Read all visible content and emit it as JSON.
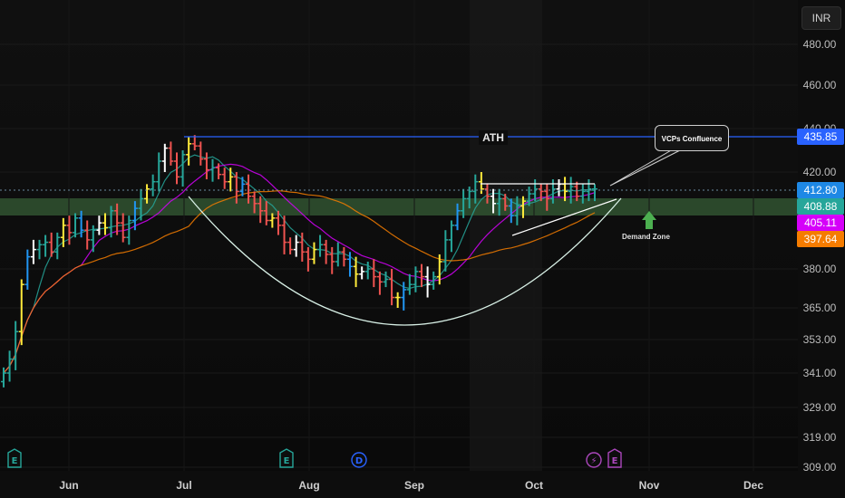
{
  "toolbar": {
    "currency": "INR"
  },
  "chart_data": {
    "type": "candlestick",
    "y_tick_labels": [
      "480.00",
      "460.00",
      "440.00",
      "420.00",
      "380.00",
      "365.00",
      "353.00",
      "341.00",
      "329.00",
      "319.00",
      "309.00"
    ],
    "x_tick_labels": [
      "Jun",
      "Jul",
      "Aug",
      "Sep",
      "Oct",
      "Nov",
      "Dec"
    ],
    "price_labels": [
      {
        "value": "435.85",
        "color": "#2962ff"
      },
      {
        "value": "412.80",
        "color": "#1e88e5"
      },
      {
        "value": "408.88",
        "color": "#26a69a"
      },
      {
        "value": "405.11",
        "color": "#d500f9"
      },
      {
        "value": "397.64",
        "color": "#f57c00"
      }
    ],
    "annotations": {
      "ath": "ATH",
      "callout": "VCPs Confluence",
      "demand_zone": "Demand Zone"
    },
    "event_markers": [
      {
        "type": "earnings",
        "symbol": "E",
        "color": "#26a69a"
      },
      {
        "type": "earnings",
        "symbol": "E",
        "color": "#26a69a"
      },
      {
        "type": "dividend",
        "symbol": "D",
        "color": "#2962ff"
      },
      {
        "type": "split",
        "symbol": "⚡",
        "color": "#ab47bc"
      },
      {
        "type": "earnings",
        "symbol": "E",
        "color": "#ab47bc"
      }
    ],
    "series_close": [
      341,
      346,
      356,
      374,
      385,
      388,
      390,
      391,
      387,
      393,
      398,
      395,
      401,
      396,
      392,
      396,
      399,
      397,
      404,
      399,
      393,
      400,
      405,
      409,
      413,
      416,
      425,
      431,
      425,
      418,
      428,
      433,
      432,
      426,
      421,
      422,
      419,
      416,
      418,
      412,
      415,
      410,
      407,
      404,
      400,
      401,
      398,
      391,
      388,
      391,
      387,
      384,
      388,
      390,
      386,
      383,
      387,
      384,
      381,
      378,
      379,
      380,
      377,
      375,
      376,
      369,
      369,
      372,
      374,
      379,
      377,
      374,
      377,
      383,
      392,
      398,
      404,
      409,
      412,
      416,
      413,
      410,
      407,
      409,
      406,
      402,
      406,
      408,
      411,
      413,
      412,
      409,
      413,
      415,
      412,
      414,
      410,
      412,
      413,
      413
    ],
    "colors": {
      "bull": "#26a69a",
      "bear": "#ef5350",
      "ath_line": "#2962ff",
      "ma_fast": "#26a69a",
      "ma_mid": "#d500f9",
      "ma_slow": "#f57c00",
      "zone": "#2f4f2f"
    }
  }
}
